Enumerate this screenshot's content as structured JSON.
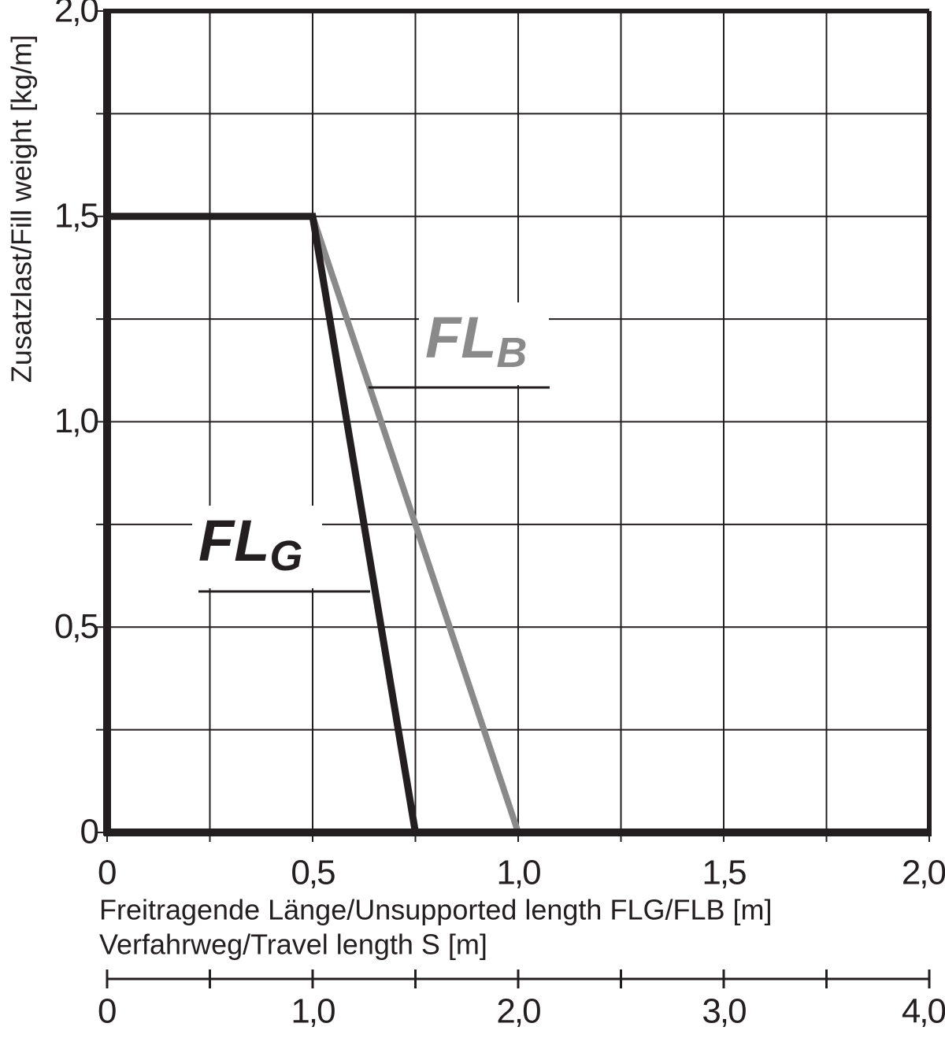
{
  "chart_data": {
    "type": "line",
    "y_label": "Zusatzlast/Fill weight [kg/m]",
    "x_label": "Freitragende Länge/Unsupported length FLG/FLB [m]",
    "x2_label": "Verfahrweg/Travel length S [m]",
    "xlim": [
      0,
      2
    ],
    "xticks": [
      0,
      {
        "value": 0.5,
        "label": "0,5"
      },
      {
        "value": 1,
        "label": "1,0"
      },
      {
        "value": 1.5,
        "label": "1,5"
      },
      {
        "value": 2,
        "label": "2,0"
      }
    ],
    "minor_xticks": [
      0.25,
      0.75,
      1.25,
      1.75
    ],
    "ylim": [
      0,
      2
    ],
    "yticks": [
      0,
      {
        "value": 0.5,
        "label": "0,5"
      },
      {
        "value": 1,
        "label": "1,0"
      },
      {
        "value": 1.5,
        "label": "1,5"
      },
      {
        "value": 2,
        "label": "2,0"
      }
    ],
    "minor_yticks": [
      0.25,
      0.75,
      1.25,
      1.75
    ],
    "x2lim": [
      0,
      4
    ],
    "x2ticks": [
      0,
      {
        "value": 1,
        "label": "1,0"
      },
      {
        "value": 2,
        "label": "2,0"
      },
      {
        "value": 3,
        "label": "3,0"
      },
      {
        "value": 4,
        "label": "4,0"
      }
    ],
    "minor_x2ticks": [
      0.5,
      1.5,
      2.5,
      3.5
    ],
    "grid": true,
    "series": [
      {
        "name": "FL",
        "subscript": "G",
        "color": "#231f20",
        "x": [
          0,
          0.5,
          0.75
        ],
        "values": [
          1.5,
          1.5,
          0
        ]
      },
      {
        "name": "FL",
        "subscript": "B",
        "color": "#8a8a8a",
        "x": [
          0.5,
          1
        ],
        "values": [
          1.5,
          0
        ]
      }
    ]
  }
}
